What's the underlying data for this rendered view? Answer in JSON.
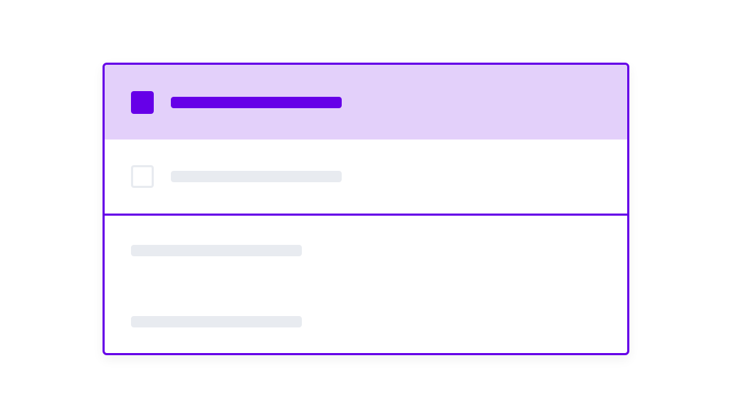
{
  "colors": {
    "accent": "#6600e8",
    "selected_bg": "#e3d0fa",
    "placeholder": "#e8ebf0",
    "background": "#ffffff"
  },
  "list": {
    "items": [
      {
        "checked": true,
        "selected": true
      },
      {
        "checked": false,
        "selected": false
      }
    ]
  },
  "details": {
    "placeholder_lines": 2
  }
}
